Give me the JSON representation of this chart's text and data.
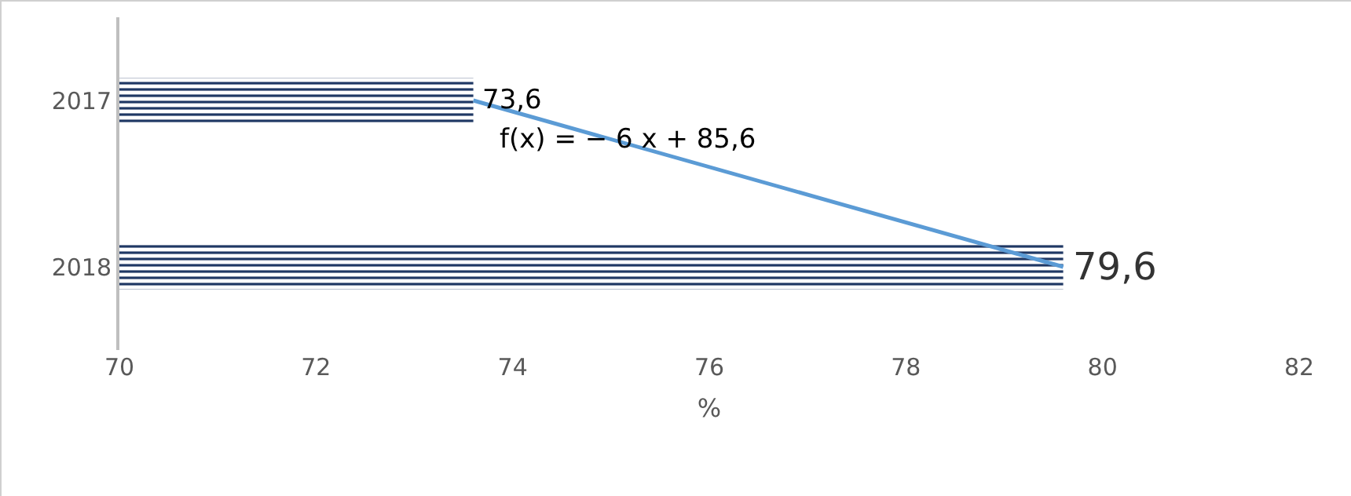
{
  "chart_data": {
    "type": "bar",
    "orientation": "horizontal",
    "categories": [
      "2017",
      "2018"
    ],
    "series": [
      {
        "color": "#1f3864",
        "values": [
          73.6,
          79.6
        ],
        "value_labels": [
          "73,6",
          "79,6"
        ]
      },
      {
        "type": "line",
        "color": "#5b9bd5",
        "values": [
          73.6,
          79.6
        ]
      }
    ],
    "xlim": [
      70,
      82
    ],
    "xticks": [
      70,
      72,
      74,
      76,
      78,
      80,
      82
    ],
    "xlabel": "%",
    "grid": false,
    "annotations": [
      "f(x) = − 6 x + 85,6"
    ]
  }
}
